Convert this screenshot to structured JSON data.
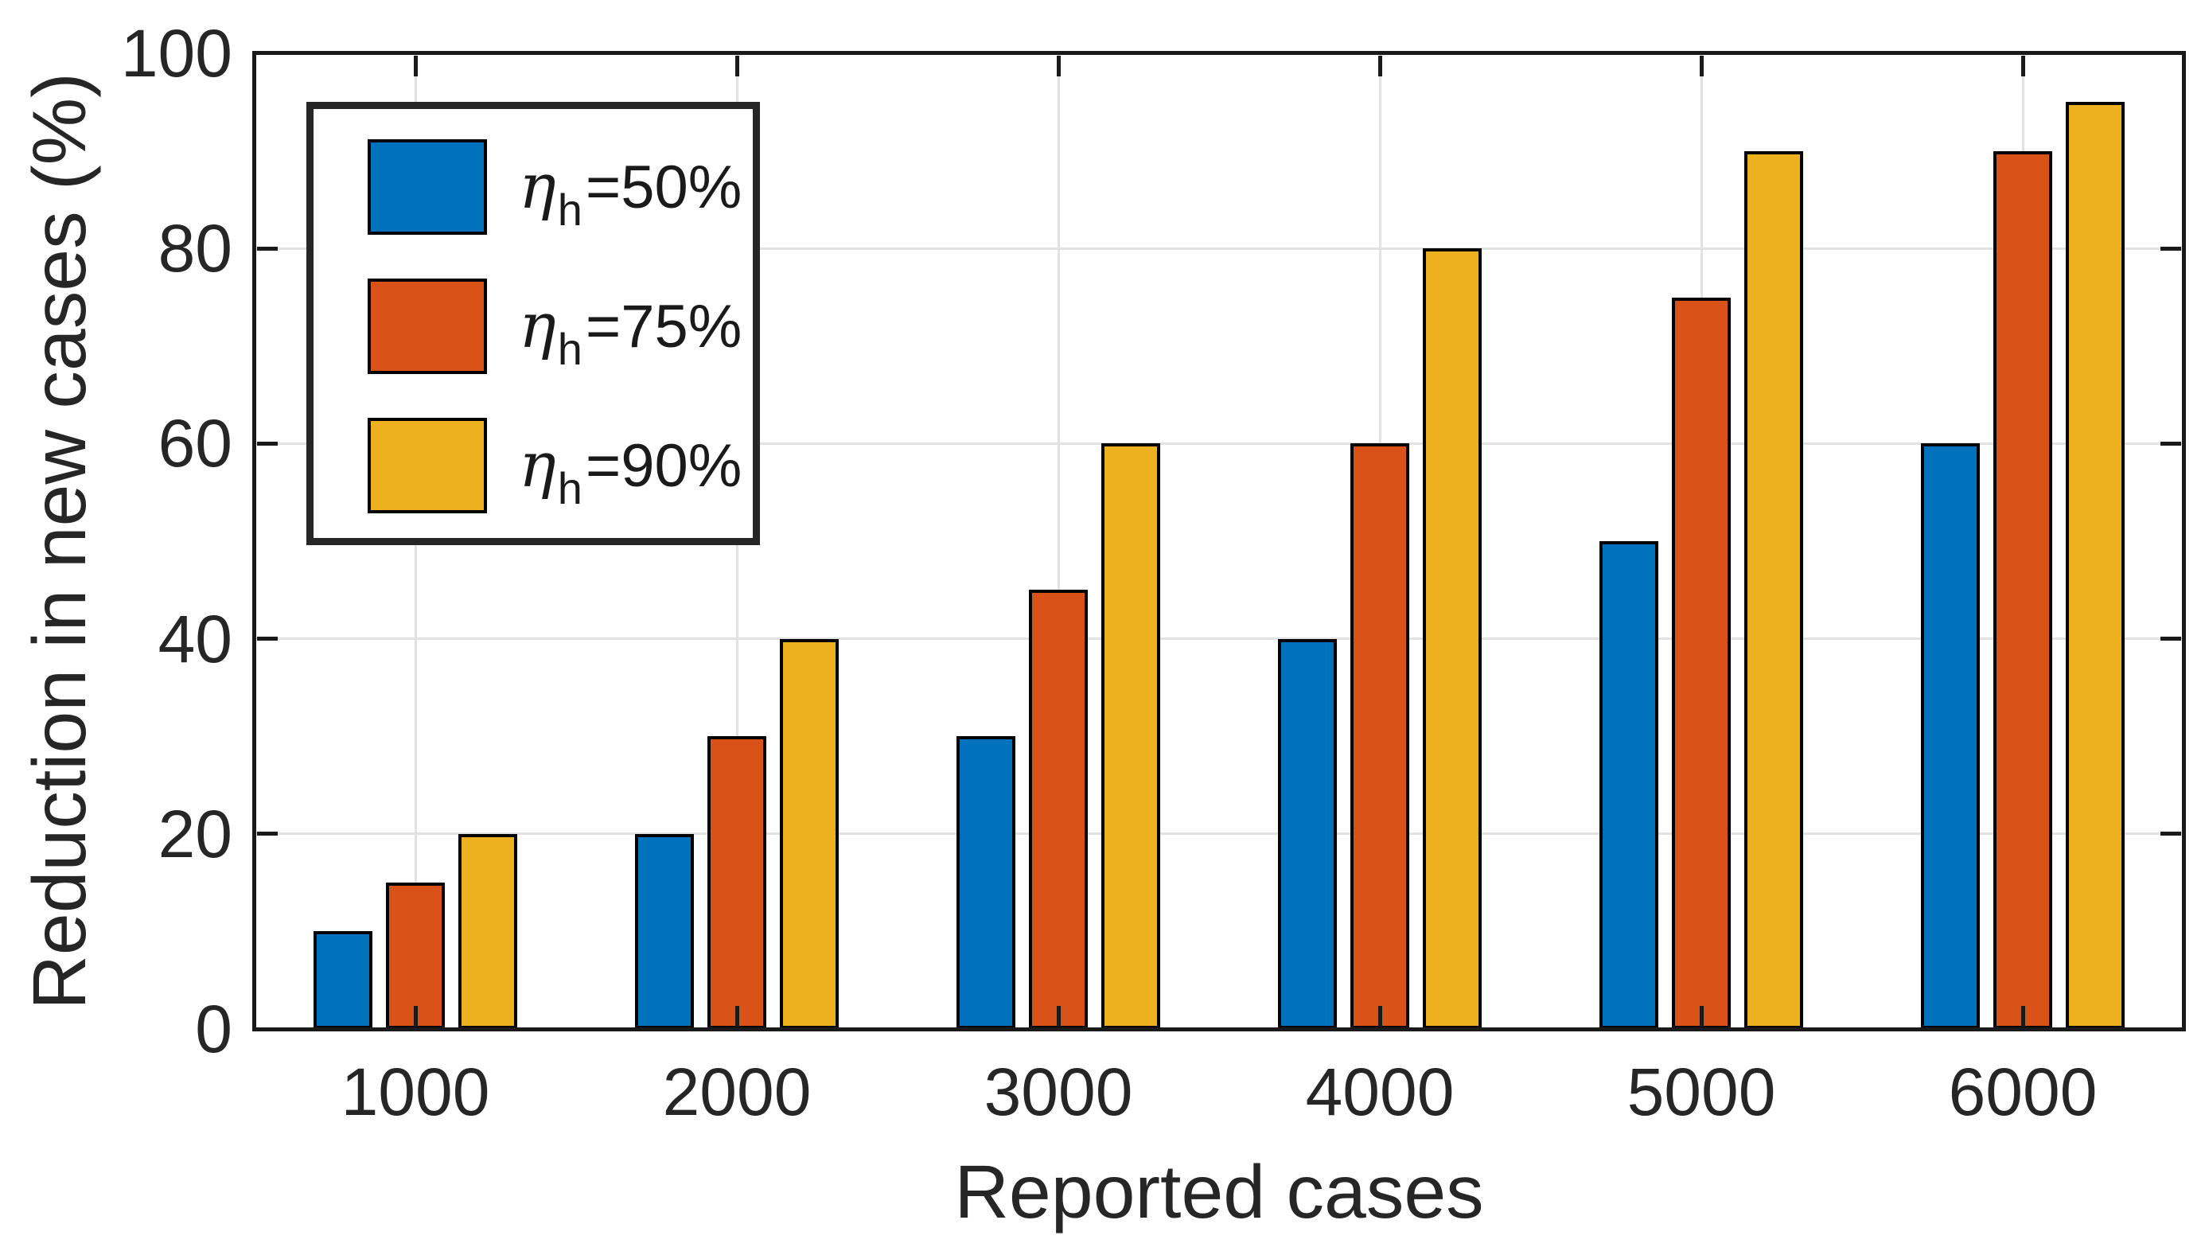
{
  "figure": {
    "background": "#ffffff",
    "axis_color": "#1a1a1a",
    "text_color": "#262626",
    "grid_color": "#e2e2e2",
    "bar_edge_color": "#000000"
  },
  "chart_data": {
    "type": "bar",
    "title": "",
    "xlabel": "Reported cases",
    "ylabel": "Reduction in new cases (%)",
    "categories": [
      "1000",
      "2000",
      "3000",
      "4000",
      "5000",
      "6000"
    ],
    "series": [
      {
        "name": "η_h=50%",
        "symbol": "η",
        "subscript": "h",
        "value_label": "=50%",
        "color": "#0072BD",
        "values": [
          10,
          20,
          30,
          40,
          50,
          60
        ]
      },
      {
        "name": "η_h=75%",
        "symbol": "η",
        "subscript": "h",
        "value_label": "=75%",
        "color": "#D95319",
        "values": [
          15,
          30,
          45,
          60,
          75,
          90
        ]
      },
      {
        "name": "η_h=90%",
        "symbol": "η",
        "subscript": "h",
        "value_label": "=90%",
        "color": "#EDB120",
        "values": [
          20,
          40,
          60,
          80,
          90,
          95
        ]
      }
    ],
    "ylim": [
      0,
      100
    ],
    "yticks": [
      0,
      20,
      40,
      60,
      80,
      100
    ],
    "ytick_labels": [
      "0",
      "20",
      "40",
      "60",
      "80",
      "100"
    ],
    "grid": "on",
    "legend_position": "northwest"
  }
}
